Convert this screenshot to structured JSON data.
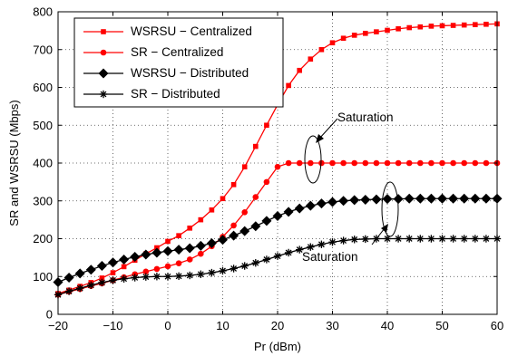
{
  "chart_data": {
    "type": "line",
    "xlabel": "Pr (dBm)",
    "ylabel": "SR and WSRSU (Mbps)",
    "xlim": [
      -20,
      60
    ],
    "ylim": [
      0,
      800
    ],
    "xticks": [
      -20,
      -10,
      0,
      10,
      20,
      30,
      40,
      50,
      60
    ],
    "yticks": [
      0,
      100,
      200,
      300,
      400,
      500,
      600,
      700,
      800
    ],
    "xtick_labels": [
      "−20",
      "−10",
      "0",
      "10",
      "20",
      "30",
      "40",
      "50",
      "60"
    ],
    "ytick_labels": [
      "0",
      "100",
      "200",
      "300",
      "400",
      "500",
      "600",
      "700",
      "800"
    ],
    "grid": true,
    "legend_position": "top-left",
    "x": [
      -20,
      -18,
      -16,
      -14,
      -12,
      -10,
      -8,
      -6,
      -4,
      -2,
      0,
      2,
      4,
      6,
      8,
      10,
      12,
      14,
      16,
      18,
      20,
      22,
      24,
      26,
      28,
      30,
      32,
      34,
      36,
      38,
      40,
      42,
      44,
      46,
      48,
      50,
      52,
      54,
      56,
      58,
      60
    ],
    "series": [
      {
        "name": "WSRSU − Centralized",
        "color": "#ff0000",
        "marker": "square",
        "values": [
          55,
          64,
          74,
          84,
          96,
          110,
          126,
          143,
          160,
          176,
          193,
          208,
          228,
          250,
          276,
          306,
          343,
          390,
          444,
          500,
          554,
          605,
          645,
          675,
          700,
          718,
          730,
          738,
          743,
          747,
          751,
          755,
          758,
          760,
          762,
          763,
          764,
          765,
          766,
          767,
          768
        ]
      },
      {
        "name": "SR − Centralized",
        "color": "#ff0000",
        "marker": "circle",
        "values": [
          52,
          60,
          67,
          75,
          82,
          90,
          98,
          106,
          113,
          120,
          127,
          135,
          145,
          160,
          180,
          205,
          235,
          270,
          310,
          350,
          390,
          400,
          400,
          400,
          400,
          400,
          400,
          400,
          400,
          400,
          400,
          400,
          400,
          400,
          400,
          400,
          400,
          400,
          400,
          400,
          400
        ]
      },
      {
        "name": "WSRSU − Distributed",
        "color": "#000000",
        "marker": "diamond",
        "values": [
          85,
          97,
          108,
          118,
          128,
          137,
          145,
          152,
          158,
          163,
          167,
          171,
          175,
          181,
          188,
          197,
          208,
          220,
          233,
          247,
          260,
          271,
          280,
          287,
          293,
          297,
          300,
          302,
          303,
          304,
          305,
          305,
          306,
          306,
          306,
          306,
          306,
          306,
          306,
          306,
          306
        ]
      },
      {
        "name": "SR − Distributed",
        "color": "#000000",
        "marker": "star",
        "values": [
          52,
          61,
          69,
          77,
          84,
          90,
          94,
          97,
          99,
          100,
          100,
          101,
          103,
          106,
          110,
          115,
          121,
          128,
          136,
          145,
          154,
          163,
          171,
          178,
          185,
          191,
          195,
          198,
          199,
          200,
          200,
          200,
          200,
          200,
          200,
          200,
          200,
          200,
          200,
          200,
          200
        ]
      }
    ],
    "annotations": [
      {
        "text": "Saturation",
        "points_to": {
          "x": 25.5,
          "y": 395
        }
      },
      {
        "text": "Saturation",
        "points_to": {
          "x": 40.5,
          "y": 305
        }
      }
    ]
  }
}
